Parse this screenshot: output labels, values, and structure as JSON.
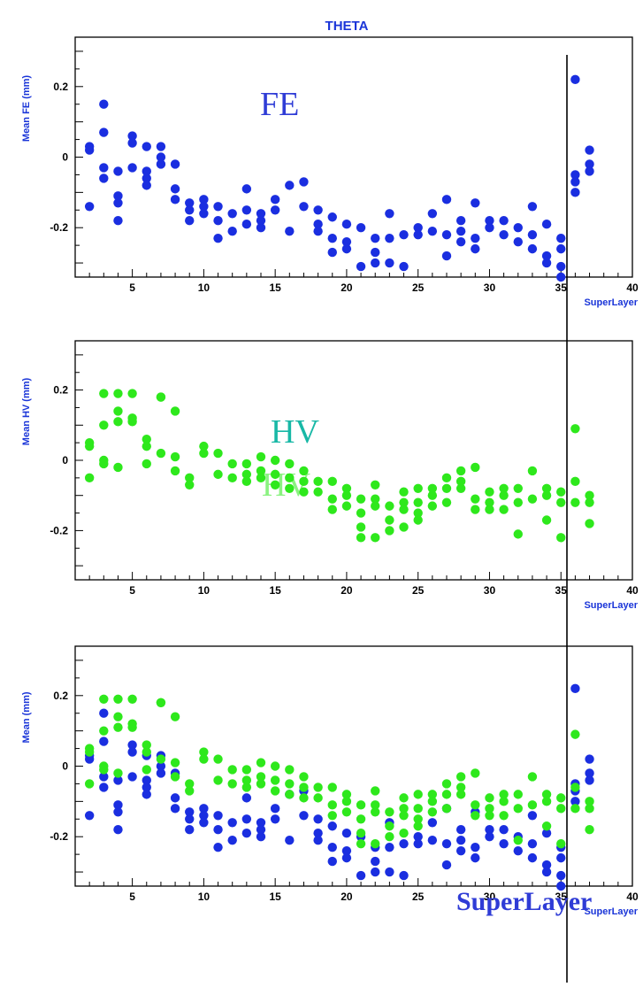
{
  "colors": {
    "fe": "#1a2ee0",
    "hv": "#2ee81c",
    "label_fe": "#2f3cd6",
    "label_hv": "#18b8a6",
    "axis_title": "#1a35d8"
  },
  "title": "THETA",
  "footer_label": "SuperLayer",
  "chart_data": [
    {
      "type": "scatter",
      "title": "THETA",
      "xlabel": "SuperLayer",
      "ylabel": "Mean FE (mm)",
      "xlim": [
        1,
        40
      ],
      "ylim": [
        -0.34,
        0.34
      ],
      "xticks": [
        "5",
        "10",
        "15",
        "20",
        "25",
        "30",
        "35",
        "40"
      ],
      "yticks": [
        "0.2",
        "0",
        "-0.2"
      ],
      "annotation": "FE",
      "series": [
        {
          "color_key": "fe",
          "points": [
            [
              2,
              0.03
            ],
            [
              2,
              0.02
            ],
            [
              2,
              -0.14
            ],
            [
              3,
              0.15
            ],
            [
              3,
              0.07
            ],
            [
              3,
              -0.03
            ],
            [
              3,
              -0.06
            ],
            [
              4,
              -0.04
            ],
            [
              4,
              -0.11
            ],
            [
              4,
              -0.13
            ],
            [
              4,
              -0.18
            ],
            [
              5,
              0.06
            ],
            [
              5,
              0.04
            ],
            [
              5,
              -0.03
            ],
            [
              6,
              0.03
            ],
            [
              6,
              -0.04
            ],
            [
              6,
              -0.06
            ],
            [
              6,
              -0.08
            ],
            [
              7,
              0.03
            ],
            [
              7,
              0.0
            ],
            [
              7,
              -0.02
            ],
            [
              8,
              -0.02
            ],
            [
              8,
              -0.09
            ],
            [
              8,
              -0.12
            ],
            [
              9,
              -0.13
            ],
            [
              9,
              -0.15
            ],
            [
              9,
              -0.18
            ],
            [
              10,
              -0.12
            ],
            [
              10,
              -0.14
            ],
            [
              10,
              -0.16
            ],
            [
              11,
              -0.14
            ],
            [
              11,
              -0.18
            ],
            [
              11,
              -0.23
            ],
            [
              12,
              -0.16
            ],
            [
              12,
              -0.21
            ],
            [
              13,
              -0.09
            ],
            [
              13,
              -0.15
            ],
            [
              13,
              -0.19
            ],
            [
              14,
              -0.16
            ],
            [
              14,
              -0.18
            ],
            [
              14,
              -0.2
            ],
            [
              15,
              -0.12
            ],
            [
              15,
              -0.15
            ],
            [
              16,
              -0.08
            ],
            [
              16,
              -0.21
            ],
            [
              17,
              -0.07
            ],
            [
              17,
              -0.14
            ],
            [
              18,
              -0.15
            ],
            [
              18,
              -0.19
            ],
            [
              18,
              -0.21
            ],
            [
              19,
              -0.17
            ],
            [
              19,
              -0.23
            ],
            [
              19,
              -0.27
            ],
            [
              20,
              -0.19
            ],
            [
              20,
              -0.24
            ],
            [
              20,
              -0.26
            ],
            [
              21,
              -0.2
            ],
            [
              21,
              -0.31
            ],
            [
              22,
              -0.23
            ],
            [
              22,
              -0.27
            ],
            [
              22,
              -0.3
            ],
            [
              23,
              -0.16
            ],
            [
              23,
              -0.23
            ],
            [
              23,
              -0.3
            ],
            [
              24,
              -0.22
            ],
            [
              24,
              -0.31
            ],
            [
              25,
              -0.2
            ],
            [
              25,
              -0.22
            ],
            [
              26,
              -0.16
            ],
            [
              26,
              -0.21
            ],
            [
              27,
              -0.12
            ],
            [
              27,
              -0.22
            ],
            [
              27,
              -0.28
            ],
            [
              28,
              -0.18
            ],
            [
              28,
              -0.21
            ],
            [
              28,
              -0.24
            ],
            [
              29,
              -0.13
            ],
            [
              29,
              -0.23
            ],
            [
              29,
              -0.26
            ],
            [
              30,
              -0.18
            ],
            [
              30,
              -0.2
            ],
            [
              31,
              -0.18
            ],
            [
              31,
              -0.22
            ],
            [
              32,
              -0.2
            ],
            [
              32,
              -0.24
            ],
            [
              33,
              -0.14
            ],
            [
              33,
              -0.22
            ],
            [
              33,
              -0.26
            ],
            [
              34,
              -0.19
            ],
            [
              34,
              -0.28
            ],
            [
              34,
              -0.3
            ],
            [
              35,
              -0.23
            ],
            [
              35,
              -0.26
            ],
            [
              35,
              -0.31
            ],
            [
              35,
              -0.34
            ],
            [
              36,
              0.22
            ],
            [
              36,
              -0.05
            ],
            [
              36,
              -0.07
            ],
            [
              36,
              -0.1
            ],
            [
              37,
              0.02
            ],
            [
              37,
              -0.02
            ],
            [
              37,
              -0.04
            ]
          ]
        }
      ]
    },
    {
      "type": "scatter",
      "xlabel": "SuperLayer",
      "ylabel": "Mean HV (mm)",
      "xlim": [
        1,
        40
      ],
      "ylim": [
        -0.34,
        0.34
      ],
      "xticks": [
        "5",
        "10",
        "15",
        "20",
        "25",
        "30",
        "35",
        "40"
      ],
      "yticks": [
        "0.2",
        "0",
        "-0.2"
      ],
      "annotation": "HV",
      "series": [
        {
          "color_key": "hv",
          "points": [
            [
              2,
              0.05
            ],
            [
              2,
              0.04
            ],
            [
              2,
              -0.05
            ],
            [
              3,
              0.19
            ],
            [
              3,
              0.1
            ],
            [
              3,
              0.0
            ],
            [
              3,
              -0.01
            ],
            [
              4,
              0.19
            ],
            [
              4,
              0.14
            ],
            [
              4,
              0.11
            ],
            [
              4,
              -0.02
            ],
            [
              5,
              0.19
            ],
            [
              5,
              0.12
            ],
            [
              5,
              0.11
            ],
            [
              6,
              0.06
            ],
            [
              6,
              0.04
            ],
            [
              6,
              -0.01
            ],
            [
              7,
              0.18
            ],
            [
              7,
              0.18
            ],
            [
              7,
              0.02
            ],
            [
              8,
              0.14
            ],
            [
              8,
              0.01
            ],
            [
              8,
              -0.03
            ],
            [
              9,
              -0.05
            ],
            [
              9,
              -0.07
            ],
            [
              10,
              0.04
            ],
            [
              10,
              0.02
            ],
            [
              11,
              0.02
            ],
            [
              11,
              -0.04
            ],
            [
              12,
              -0.01
            ],
            [
              12,
              -0.05
            ],
            [
              13,
              -0.01
            ],
            [
              13,
              -0.04
            ],
            [
              13,
              -0.06
            ],
            [
              14,
              0.01
            ],
            [
              14,
              -0.03
            ],
            [
              14,
              -0.05
            ],
            [
              15,
              0.0
            ],
            [
              15,
              -0.04
            ],
            [
              15,
              -0.07
            ],
            [
              16,
              -0.01
            ],
            [
              16,
              -0.05
            ],
            [
              16,
              -0.08
            ],
            [
              17,
              -0.03
            ],
            [
              17,
              -0.06
            ],
            [
              17,
              -0.09
            ],
            [
              18,
              -0.06
            ],
            [
              18,
              -0.09
            ],
            [
              19,
              -0.06
            ],
            [
              19,
              -0.11
            ],
            [
              19,
              -0.14
            ],
            [
              20,
              -0.08
            ],
            [
              20,
              -0.1
            ],
            [
              20,
              -0.13
            ],
            [
              21,
              -0.11
            ],
            [
              21,
              -0.15
            ],
            [
              21,
              -0.19
            ],
            [
              21,
              -0.22
            ],
            [
              22,
              -0.07
            ],
            [
              22,
              -0.11
            ],
            [
              22,
              -0.13
            ],
            [
              22,
              -0.22
            ],
            [
              23,
              -0.13
            ],
            [
              23,
              -0.17
            ],
            [
              23,
              -0.2
            ],
            [
              24,
              -0.09
            ],
            [
              24,
              -0.12
            ],
            [
              24,
              -0.14
            ],
            [
              24,
              -0.19
            ],
            [
              25,
              -0.08
            ],
            [
              25,
              -0.12
            ],
            [
              25,
              -0.15
            ],
            [
              25,
              -0.17
            ],
            [
              26,
              -0.08
            ],
            [
              26,
              -0.1
            ],
            [
              26,
              -0.13
            ],
            [
              27,
              -0.05
            ],
            [
              27,
              -0.08
            ],
            [
              27,
              -0.12
            ],
            [
              28,
              -0.03
            ],
            [
              28,
              -0.06
            ],
            [
              28,
              -0.08
            ],
            [
              29,
              -0.02
            ],
            [
              29,
              -0.11
            ],
            [
              29,
              -0.14
            ],
            [
              30,
              -0.09
            ],
            [
              30,
              -0.12
            ],
            [
              30,
              -0.14
            ],
            [
              31,
              -0.08
            ],
            [
              31,
              -0.1
            ],
            [
              31,
              -0.14
            ],
            [
              32,
              -0.08
            ],
            [
              32,
              -0.12
            ],
            [
              32,
              -0.21
            ],
            [
              33,
              -0.03
            ],
            [
              33,
              -0.11
            ],
            [
              34,
              -0.08
            ],
            [
              34,
              -0.1
            ],
            [
              34,
              -0.17
            ],
            [
              35,
              -0.09
            ],
            [
              35,
              -0.12
            ],
            [
              35,
              -0.22
            ],
            [
              36,
              0.09
            ],
            [
              36,
              -0.06
            ],
            [
              36,
              -0.12
            ],
            [
              37,
              -0.1
            ],
            [
              37,
              -0.12
            ],
            [
              37,
              -0.18
            ]
          ]
        }
      ]
    },
    {
      "type": "scatter",
      "xlabel": "SuperLayer",
      "ylabel": "Mean (mm)",
      "xlim": [
        1,
        40
      ],
      "ylim": [
        -0.34,
        0.34
      ],
      "xticks": [
        "5",
        "10",
        "15",
        "20",
        "25",
        "30",
        "35",
        "40"
      ],
      "yticks": [
        "0.2",
        "0",
        "-0.2"
      ],
      "series": [
        {
          "color_key": "fe",
          "same_as_panel": 0
        },
        {
          "color_key": "hv",
          "same_as_panel": 1
        }
      ]
    }
  ]
}
